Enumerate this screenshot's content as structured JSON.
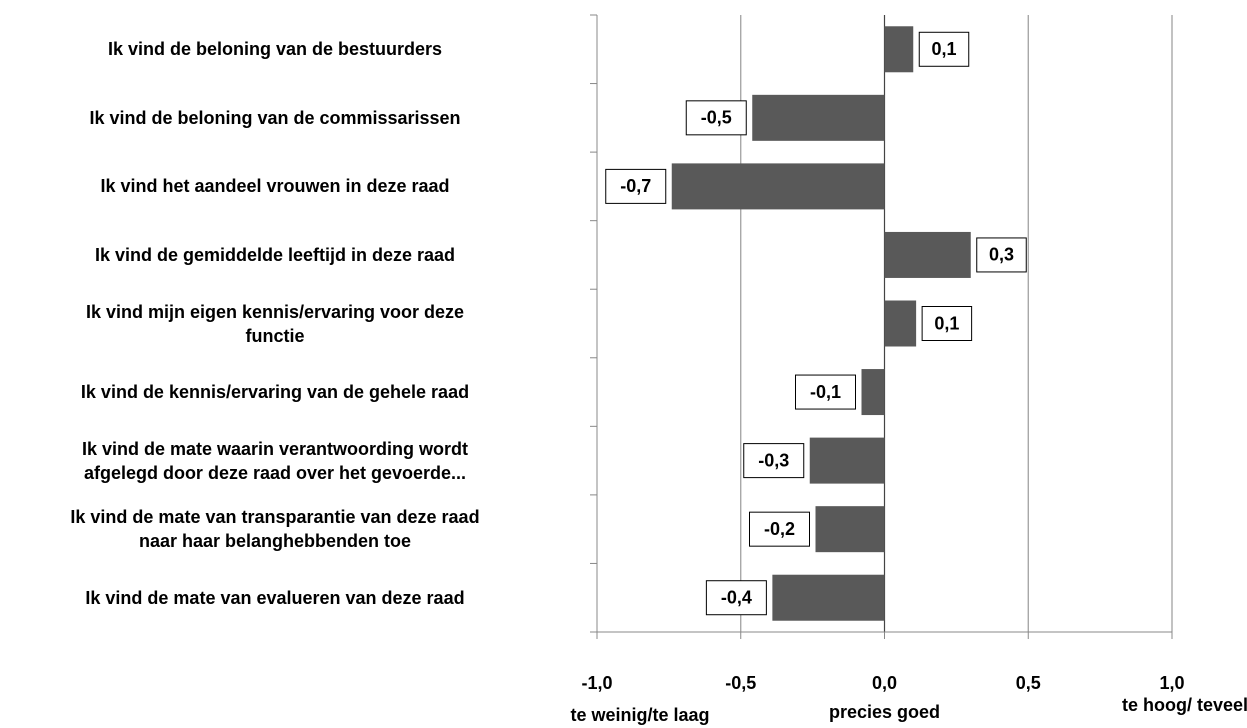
{
  "chart_data": {
    "type": "hbar",
    "categories": [
      "Ik vind de beloning van de bestuurders",
      "Ik vind de beloning van de commissarissen",
      "Ik vind het aandeel vrouwen in deze raad",
      "Ik vind de gemiddelde leeftijd in deze raad",
      "Ik vind mijn eigen kennis/ervaring voor deze\nfunctie",
      "Ik vind de kennis/ervaring van de gehele raad",
      "Ik vind de mate waarin verantwoording wordt\nafgelegd door deze raad over het gevoerde...",
      "Ik vind de mate van transparantie van deze raad\nnaar haar belanghebbenden toe",
      "Ik vind de mate van evalueren van deze raad"
    ],
    "values": [
      0.1,
      -0.46,
      -0.74,
      0.3,
      0.11,
      -0.08,
      -0.26,
      -0.24,
      -0.39
    ],
    "value_labels": [
      "0,1",
      "-0,5",
      "-0,7",
      "0,3",
      "0,1",
      "-0,1",
      "-0,3",
      "-0,2",
      "-0,4"
    ],
    "color": "#595959",
    "xlim": [
      -1.0,
      1.0
    ],
    "xticks": [
      {
        "value": -1.0,
        "label": "-1,0"
      },
      {
        "value": -0.5,
        "label": "-0,5"
      },
      {
        "value": 0.0,
        "label": "0,0"
      },
      {
        "value": 0.5,
        "label": "0,5"
      },
      {
        "value": 1.0,
        "label": "1,0"
      }
    ],
    "grid": true,
    "annotations": [
      "te weinig/te laag",
      "precies goed",
      "te hoog/ teveel"
    ]
  }
}
